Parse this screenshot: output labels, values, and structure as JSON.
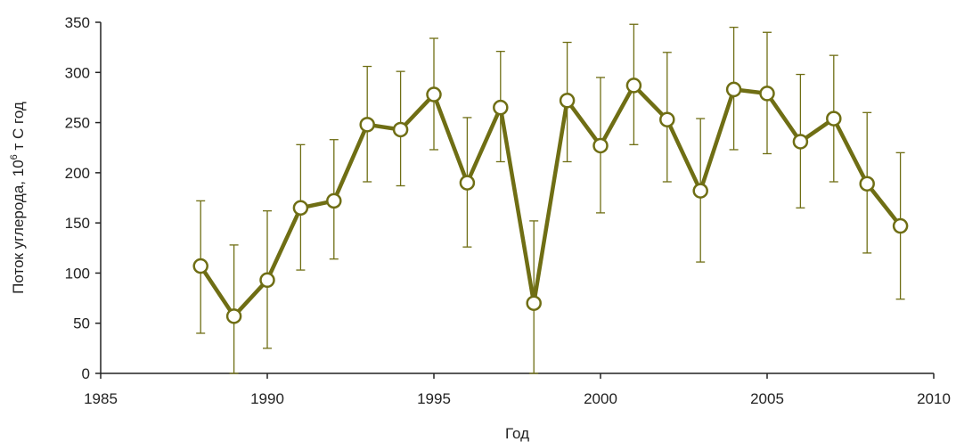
{
  "chart_data": {
    "type": "line",
    "title": "",
    "xlabel": "Год",
    "ylabel_prefix": "Поток углерода, 10",
    "ylabel_exp": "6",
    "ylabel_suffix": " т С год",
    "xlim": [
      1985,
      2010
    ],
    "ylim": [
      0,
      350
    ],
    "x_ticks": [
      "1985",
      "1990",
      "1995",
      "2000",
      "2005",
      "2010"
    ],
    "y_ticks": [
      "0",
      "50",
      "100",
      "150",
      "200",
      "250",
      "300",
      "350"
    ],
    "grid": false,
    "legend": "none",
    "series": [
      {
        "color": "#6f6e14",
        "marker": "open-circle",
        "points": [
          {
            "x": 1988,
            "y": 107,
            "low": 40,
            "high": 172
          },
          {
            "x": 1989,
            "y": 57,
            "low": 0,
            "high": 128
          },
          {
            "x": 1990,
            "y": 93,
            "low": 25,
            "high": 162
          },
          {
            "x": 1991,
            "y": 165,
            "low": 103,
            "high": 228
          },
          {
            "x": 1992,
            "y": 172,
            "low": 114,
            "high": 233
          },
          {
            "x": 1993,
            "y": 248,
            "low": 191,
            "high": 306
          },
          {
            "x": 1994,
            "y": 243,
            "low": 187,
            "high": 301
          },
          {
            "x": 1995,
            "y": 278,
            "low": 223,
            "high": 334
          },
          {
            "x": 1996,
            "y": 190,
            "low": 126,
            "high": 255
          },
          {
            "x": 1997,
            "y": 265,
            "low": 211,
            "high": 321
          },
          {
            "x": 1998,
            "y": 70,
            "low": 0,
            "high": 152
          },
          {
            "x": 1999,
            "y": 272,
            "low": 211,
            "high": 330
          },
          {
            "x": 2000,
            "y": 227,
            "low": 160,
            "high": 295
          },
          {
            "x": 2001,
            "y": 287,
            "low": 228,
            "high": 348
          },
          {
            "x": 2002,
            "y": 253,
            "low": 191,
            "high": 320
          },
          {
            "x": 2003,
            "y": 182,
            "low": 111,
            "high": 254
          },
          {
            "x": 2004,
            "y": 283,
            "low": 223,
            "high": 345
          },
          {
            "x": 2005,
            "y": 279,
            "low": 219,
            "high": 340
          },
          {
            "x": 2006,
            "y": 231,
            "low": 165,
            "high": 298
          },
          {
            "x": 2007,
            "y": 254,
            "low": 191,
            "high": 317
          },
          {
            "x": 2008,
            "y": 189,
            "low": 120,
            "high": 260
          },
          {
            "x": 2009,
            "y": 147,
            "low": 74,
            "high": 220
          }
        ]
      }
    ]
  }
}
